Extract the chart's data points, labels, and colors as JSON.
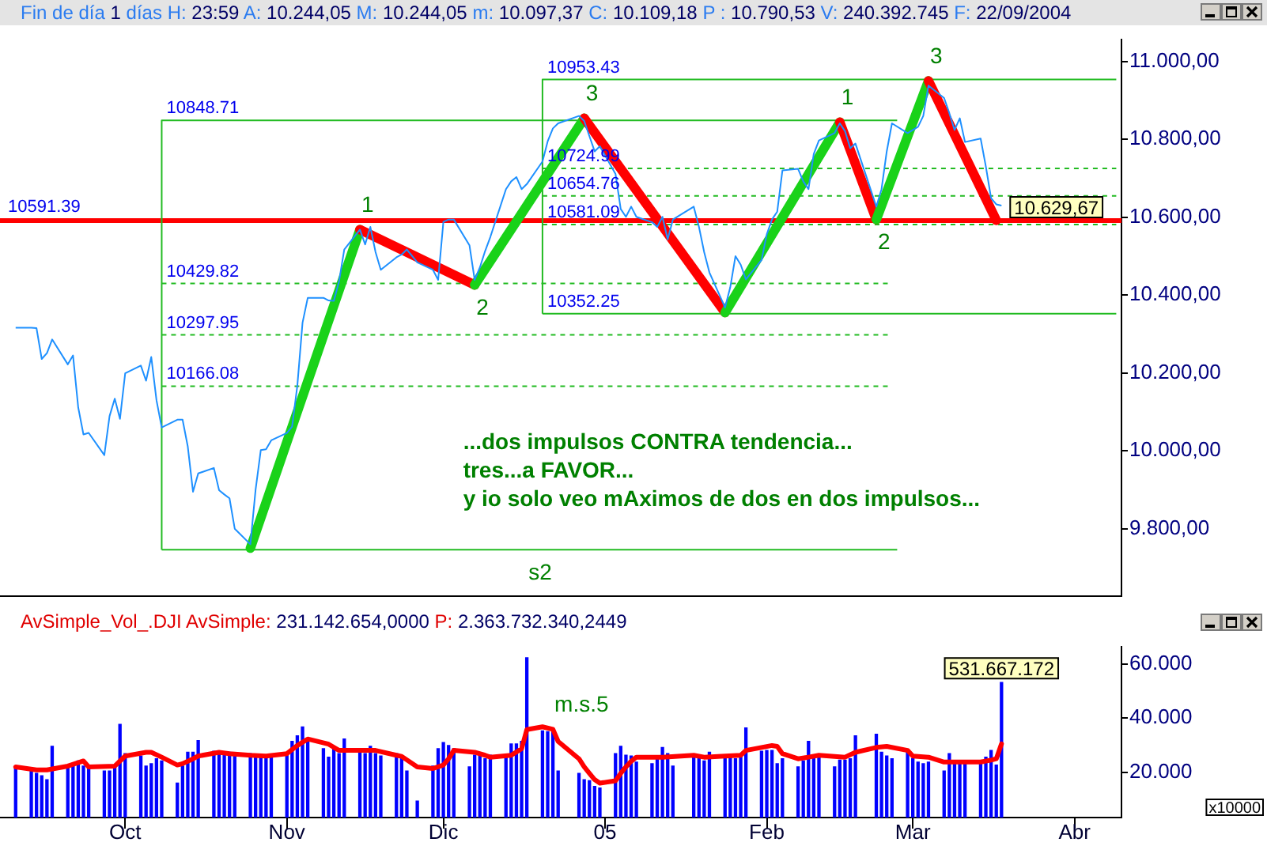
{
  "chart_data": [
    {
      "type": "line",
      "title": "Fin de día 1 días H: 23:59 A: 10.244,05 M: 10.244,05 m: 10.097,37 C: 10.109,18 P : 10.790,53 V: 240.392.745 F: 22/09/2004",
      "x": [
        "2004-09-10",
        "2004-09-13",
        "2004-09-14",
        "2004-09-15",
        "2004-09-16",
        "2004-09-17",
        "2004-09-20",
        "2004-09-21",
        "2004-09-22",
        "2004-09-23",
        "2004-09-24",
        "2004-09-27",
        "2004-09-28",
        "2004-09-29",
        "2004-09-30",
        "2004-10-01",
        "2004-10-04",
        "2004-10-05",
        "2004-10-06",
        "2004-10-07",
        "2004-10-08",
        "2004-10-11",
        "2004-10-12",
        "2004-10-13",
        "2004-10-14",
        "2004-10-15",
        "2004-10-18",
        "2004-10-19",
        "2004-10-20",
        "2004-10-21",
        "2004-10-22",
        "2004-10-25",
        "2004-10-26",
        "2004-10-27",
        "2004-10-28",
        "2004-10-29",
        "2004-11-01",
        "2004-11-02",
        "2004-11-03",
        "2004-11-04",
        "2004-11-05",
        "2004-11-08",
        "2004-11-09",
        "2004-11-10",
        "2004-11-11",
        "2004-11-12",
        "2004-11-15",
        "2004-11-16",
        "2004-11-17",
        "2004-11-18",
        "2004-11-19",
        "2004-11-22",
        "2004-11-23",
        "2004-11-24",
        "2004-11-26",
        "2004-11-29",
        "2004-11-30",
        "2004-12-01",
        "2004-12-02",
        "2004-12-03",
        "2004-12-06",
        "2004-12-07",
        "2004-12-08",
        "2004-12-09",
        "2004-12-10",
        "2004-12-13",
        "2004-12-14",
        "2004-12-15",
        "2004-12-16",
        "2004-12-17",
        "2004-12-20",
        "2004-12-21",
        "2004-12-22",
        "2004-12-23",
        "2004-12-27",
        "2004-12-28",
        "2004-12-29",
        "2004-12-30",
        "2004-12-31",
        "2005-01-03",
        "2005-01-04",
        "2005-01-05",
        "2005-01-06",
        "2005-01-07",
        "2005-01-10",
        "2005-01-11",
        "2005-01-12",
        "2005-01-13",
        "2005-01-14",
        "2005-01-18",
        "2005-01-19",
        "2005-01-20",
        "2005-01-21",
        "2005-01-24",
        "2005-01-25",
        "2005-01-26",
        "2005-01-27",
        "2005-01-28",
        "2005-01-31",
        "2005-02-01",
        "2005-02-02",
        "2005-02-03",
        "2005-02-04",
        "2005-02-07",
        "2005-02-08",
        "2005-02-09",
        "2005-02-10",
        "2005-02-11",
        "2005-02-14",
        "2005-02-15",
        "2005-02-16",
        "2005-02-17",
        "2005-02-18",
        "2005-02-22",
        "2005-02-23",
        "2005-02-24",
        "2005-02-25",
        "2005-02-28",
        "2005-03-01",
        "2005-03-02",
        "2005-03-03",
        "2005-03-04",
        "2005-03-07",
        "2005-03-08",
        "2005-03-09",
        "2005-03-10",
        "2005-03-11",
        "2005-03-14",
        "2005-03-15",
        "2005-03-16",
        "2005-03-17",
        "2005-03-18"
      ],
      "xlim": [
        "2004-09-07",
        "2005-04-10"
      ],
      "ylim": [
        9626,
        11057
      ],
      "yticks": [
        {
          "value": 9800,
          "label": "9.800,00"
        },
        {
          "value": 10000,
          "label": "10.000,00"
        },
        {
          "value": 10200,
          "label": "10.200,00"
        },
        {
          "value": 10400,
          "label": "10.400,00"
        },
        {
          "value": 10600,
          "label": "10.600,00"
        },
        {
          "value": 10800,
          "label": "10.800,00"
        },
        {
          "value": 11000,
          "label": "11.000,00"
        }
      ],
      "tick_labels": "y",
      "series": [
        {
          "name": "10848.71",
          "color": "#22bb22",
          "x": [
            "2004-10-08",
            "2004-10-08",
            "2005-02-26"
          ],
          "values": [
            9746,
            10848.71,
            10848.71
          ]
        },
        {
          "color": "#22bb22",
          "x": [
            "2004-10-08",
            "2004-12-17",
            "2005-02-26"
          ],
          "values": [
            9746,
            9746,
            9746
          ]
        },
        {
          "name": "10429.82",
          "color": "#22bb22",
          "line_style": "dashed",
          "x": [
            "2004-10-08",
            "2005-02-25"
          ],
          "values": [
            10429.82,
            10429.82
          ]
        },
        {
          "name": "10297.95",
          "color": "#22bb22",
          "line_style": "dashed",
          "x": [
            "2004-10-08",
            "2005-02-25"
          ],
          "values": [
            10297.95,
            10297.95
          ]
        },
        {
          "name": "10166.08",
          "color": "#22bb22",
          "line_style": "dashed",
          "x": [
            "2004-10-08",
            "2005-02-25"
          ],
          "values": [
            10166.08,
            10166.08
          ]
        },
        {
          "name": "10953.43",
          "color": "#22bb22",
          "x": [
            "2004-12-20",
            "2004-12-20",
            "2005-04-09"
          ],
          "values": [
            10352.25,
            10953.43,
            10953.43
          ]
        },
        {
          "name": "10352.25",
          "color": "#22bb22",
          "x": [
            "2004-12-20",
            "2005-04-09"
          ],
          "values": [
            10352.25,
            10352.25
          ]
        },
        {
          "name": "10724.99",
          "color": "#22bb22",
          "line_style": "dashed",
          "x": [
            "2004-12-20",
            "2005-04-09"
          ],
          "values": [
            10724.99,
            10724.99
          ]
        },
        {
          "name": "10654.76",
          "color": "#22bb22",
          "line_style": "dashed",
          "x": [
            "2004-12-20",
            "2005-04-09"
          ],
          "values": [
            10654.76,
            10654.76
          ]
        },
        {
          "name": "10581.09",
          "color": "#22bb22",
          "line_style": "dashed",
          "x": [
            "2004-12-20",
            "2005-04-09"
          ],
          "values": [
            10581.09,
            10581.09
          ]
        },
        {
          "color": "#19d219",
          "x": [
            "2004-10-25",
            "2004-11-15"
          ],
          "values": [
            9750,
            10568
          ]
        },
        {
          "color": "#ff0000",
          "x": [
            "2004-11-15",
            "2004-12-07"
          ],
          "values": [
            10568,
            10426
          ]
        },
        {
          "color": "#19d219",
          "x": [
            "2004-12-07",
            "2004-12-28"
          ],
          "values": [
            10426,
            10854
          ]
        },
        {
          "color": "#ff0000",
          "x": [
            "2004-12-28",
            "2005-01-24"
          ],
          "values": [
            10854,
            10355
          ]
        },
        {
          "color": "#19d219",
          "x": [
            "2005-01-24",
            "2005-02-15"
          ],
          "values": [
            10355,
            10844
          ]
        },
        {
          "color": "#ff0000",
          "x": [
            "2005-02-15",
            "2005-02-22"
          ],
          "values": [
            10844,
            10594
          ]
        },
        {
          "color": "#19d219",
          "x": [
            "2005-02-22",
            "2005-03-04"
          ],
          "values": [
            10594,
            10950
          ]
        },
        {
          "color": "#ff0000",
          "x": [
            "2005-03-04",
            "2005-03-17"
          ],
          "values": [
            10950,
            10592
          ]
        },
        {
          "color": "#1e90ff",
          "values": [
            10316,
            10316,
            10315,
            10236,
            10251,
            10286,
            10222,
            10245,
            10111,
            10042,
            10046,
            9989,
            10089,
            10134,
            10082,
            10199,
            10219,
            10180,
            10241,
            10130,
            10060,
            10080,
            10080,
            10011,
            9895,
            9942,
            9956,
            9899,
            9888,
            9878,
            9800,
            9760,
            9900,
            10002,
            10004,
            10027,
            10046,
            10062,
            10167,
            10329,
            10393,
            10393,
            10386,
            10385,
            10435,
            10517,
            10568,
            10530,
            10575,
            10510,
            10465,
            10497,
            10504,
            10517,
            10484,
            10465,
            10439,
            10588,
            10594,
            10594,
            10528,
            10439,
            10471,
            10513,
            10549,
            10672,
            10692,
            10703,
            10672,
            10685,
            10743,
            10795,
            10828,
            10841,
            10860,
            10847,
            10808,
            10769,
            10782,
            10711,
            10621,
            10601,
            10627,
            10601,
            10587,
            10575,
            10601,
            10543,
            10594,
            10627,
            10575,
            10510,
            10458,
            10368,
            10420,
            10500,
            10478,
            10440,
            10490,
            10556,
            10594,
            10614,
            10720,
            10724,
            10692,
            10672,
            10762,
            10797,
            10816,
            10841,
            10821,
            10777,
            10789,
            10627,
            10672,
            10769,
            10841,
            10816,
            10824,
            10832,
            10860,
            10938,
            10906,
            10867,
            10824,
            10854,
            10793,
            10802,
            10730,
            10649,
            10633,
            10629.67
          ],
          "value_labels": [
            null,
            null,
            null,
            null,
            null,
            null,
            null,
            null,
            null,
            null,
            null,
            null,
            null,
            null,
            null,
            null,
            null,
            null,
            null,
            null,
            null,
            null,
            null,
            null,
            null,
            null,
            null,
            null,
            null,
            null,
            null,
            null,
            null,
            null,
            null,
            null,
            null,
            null,
            null,
            null,
            null,
            null,
            null,
            null,
            null,
            null,
            null,
            null,
            null,
            null,
            null,
            null,
            null,
            null,
            null,
            null,
            null,
            null,
            null,
            null,
            null,
            null,
            null,
            null,
            null,
            null,
            null,
            null,
            null,
            null,
            null,
            null,
            null,
            null,
            null,
            null,
            null,
            null,
            null,
            null,
            null,
            null,
            null,
            null,
            null,
            null,
            null,
            null,
            null,
            null,
            null,
            null,
            null,
            null,
            null,
            null,
            null,
            null,
            null,
            null,
            null,
            null,
            null,
            null,
            null,
            null,
            null,
            null,
            null,
            null,
            null,
            null,
            null,
            null,
            null,
            null,
            null,
            null,
            null,
            null,
            null,
            null,
            null,
            null,
            null,
            null,
            null,
            null,
            null,
            null,
            null,
            "10.629,67"
          ]
        }
      ],
      "ref_lines": [
        {
          "axis": "y",
          "value": 10591.39,
          "label": "10591.39",
          "color": "#ff0000"
        }
      ],
      "annotations": [
        {
          "text": "1",
          "x": "2004-11-15",
          "y": 10568
        },
        {
          "text": "2",
          "x": "2004-12-07",
          "y": 10426
        },
        {
          "text": "3",
          "x": "2004-12-28",
          "y": 10854
        },
        {
          "text": "1",
          "x": "2005-02-15",
          "y": 10844
        },
        {
          "text": "2",
          "x": "2005-02-22",
          "y": 10594
        },
        {
          "text": "3",
          "x": "2005-03-04",
          "y": 10950
        },
        {
          "text": "s2",
          "x": "2004-12-17",
          "y": 9746
        },
        "...dos impulsos CONTRA tendencia...",
        "tres...a FAVOR...",
        "y io solo veo mAximos de dos en dos impulsos..."
      ]
    },
    {
      "type": "bar",
      "title": "AvSimple_Vol_.DJI AvSimple: 231.142.654,0000 P: 2.363.732.340,2449",
      "x": [
        "2004-09-10",
        "2004-09-13",
        "2004-09-14",
        "2004-09-15",
        "2004-09-16",
        "2004-09-17",
        "2004-09-20",
        "2004-09-21",
        "2004-09-22",
        "2004-09-23",
        "2004-09-24",
        "2004-09-27",
        "2004-09-28",
        "2004-09-29",
        "2004-09-30",
        "2004-10-01",
        "2004-10-04",
        "2004-10-05",
        "2004-10-06",
        "2004-10-07",
        "2004-10-08",
        "2004-10-11",
        "2004-10-12",
        "2004-10-13",
        "2004-10-14",
        "2004-10-15",
        "2004-10-18",
        "2004-10-19",
        "2004-10-20",
        "2004-10-21",
        "2004-10-22",
        "2004-10-25",
        "2004-10-26",
        "2004-10-27",
        "2004-10-28",
        "2004-10-29",
        "2004-11-01",
        "2004-11-02",
        "2004-11-03",
        "2004-11-04",
        "2004-11-05",
        "2004-11-08",
        "2004-11-09",
        "2004-11-10",
        "2004-11-11",
        "2004-11-12",
        "2004-11-15",
        "2004-11-16",
        "2004-11-17",
        "2004-11-18",
        "2004-11-19",
        "2004-11-22",
        "2004-11-23",
        "2004-11-24",
        "2004-11-26",
        "2004-11-29",
        "2004-11-30",
        "2004-12-01",
        "2004-12-02",
        "2004-12-03",
        "2004-12-06",
        "2004-12-07",
        "2004-12-08",
        "2004-12-09",
        "2004-12-10",
        "2004-12-13",
        "2004-12-14",
        "2004-12-15",
        "2004-12-16",
        "2004-12-17",
        "2004-12-20",
        "2004-12-21",
        "2004-12-22",
        "2004-12-23",
        "2004-12-27",
        "2004-12-28",
        "2004-12-29",
        "2004-12-30",
        "2004-12-31",
        "2005-01-03",
        "2005-01-04",
        "2005-01-05",
        "2005-01-06",
        "2005-01-07",
        "2005-01-10",
        "2005-01-11",
        "2005-01-12",
        "2005-01-13",
        "2005-01-14",
        "2005-01-18",
        "2005-01-19",
        "2005-01-20",
        "2005-01-21",
        "2005-01-24",
        "2005-01-25",
        "2005-01-26",
        "2005-01-27",
        "2005-01-28",
        "2005-01-31",
        "2005-02-01",
        "2005-02-02",
        "2005-02-03",
        "2005-02-04",
        "2005-02-07",
        "2005-02-08",
        "2005-02-09",
        "2005-02-10",
        "2005-02-11",
        "2005-02-14",
        "2005-02-15",
        "2005-02-16",
        "2005-02-17",
        "2005-02-18",
        "2005-02-22",
        "2005-02-23",
        "2005-02-24",
        "2005-02-25",
        "2005-02-28",
        "2005-03-01",
        "2005-03-02",
        "2005-03-03",
        "2005-03-04",
        "2005-03-07",
        "2005-03-08",
        "2005-03-09",
        "2005-03-10",
        "2005-03-11",
        "2005-03-14",
        "2005-03-15",
        "2005-03-16",
        "2005-03-17",
        "2005-03-18"
      ],
      "xlim": [
        "2004-09-07",
        "2005-04-10"
      ],
      "xticks": [
        {
          "value": "2004-10-01",
          "label": "Oct"
        },
        {
          "value": "2004-11-01",
          "label": "Nov"
        },
        {
          "value": "2004-12-01",
          "label": "Dic"
        },
        {
          "value": "2005-01-01",
          "label": "05"
        },
        {
          "value": "2005-02-01",
          "label": "Feb"
        },
        {
          "value": "2005-03-01",
          "label": "Mar"
        },
        {
          "value": "2005-04-01",
          "label": "Abr"
        }
      ],
      "ylim": [
        3300,
        66500
      ],
      "yticks": [
        {
          "value": 20000,
          "label": "20.000"
        },
        {
          "value": 40000,
          "label": "40.000"
        },
        {
          "value": 60000,
          "label": "60.000"
        }
      ],
      "ylabel": "x10000",
      "series": [
        {
          "color": "#0000ff",
          "values": [
            21400,
            21400,
            19600,
            18700,
            17300,
            29600,
            22300,
            23200,
            24200,
            22300,
            21400,
            20500,
            20500,
            22300,
            37700,
            26900,
            26000,
            22300,
            23200,
            25000,
            24200,
            16000,
            22300,
            27400,
            27400,
            31700,
            27800,
            27400,
            26900,
            27400,
            26900,
            26900,
            26000,
            26000,
            26000,
            26000,
            26900,
            31400,
            33500,
            36800,
            31400,
            28700,
            25600,
            28700,
            26900,
            32300,
            28700,
            26900,
            29600,
            26900,
            26000,
            26900,
            25000,
            20500,
            9400,
            22300,
            28700,
            31000,
            29900,
            28700,
            22000,
            26300,
            26300,
            25000,
            26300,
            26000,
            30500,
            30500,
            31400,
            62300,
            35300,
            35000,
            35000,
            20500,
            19600,
            17300,
            16900,
            14800,
            14200,
            26900,
            29600,
            26300,
            26000,
            23800,
            23200,
            25000,
            29200,
            26900,
            22300,
            25600,
            26300,
            24200,
            27400,
            26000,
            26300,
            25000,
            26000,
            36400,
            27800,
            28100,
            28100,
            23200,
            25000,
            22000,
            24200,
            31400,
            25000,
            26300,
            22000,
            24500,
            24500,
            25000,
            33500,
            34100,
            27400,
            26000,
            25000,
            27800,
            25000,
            23800,
            23200,
            23800,
            20500,
            26900,
            23200,
            24200,
            23200,
            23800,
            25600,
            28100,
            22700,
            53166.7172
          ]
        },
        {
          "type": "line",
          "color": "#ff0000",
          "x": [
            "2004-09-10",
            "2004-09-14",
            "2004-09-16",
            "2004-09-20",
            "2004-09-23",
            "2004-09-24",
            "2004-09-29",
            "2004-10-01",
            "2004-10-05",
            "2004-10-06",
            "2004-10-08",
            "2004-10-11",
            "2004-10-12",
            "2004-10-14",
            "2004-10-15",
            "2004-10-19",
            "2004-10-21",
            "2004-10-25",
            "2004-10-28",
            "2004-11-01",
            "2004-11-03",
            "2004-11-05",
            "2004-11-09",
            "2004-11-11",
            "2004-11-16",
            "2004-11-18",
            "2004-11-22",
            "2004-11-23",
            "2004-11-26",
            "2004-11-29",
            "2004-12-01",
            "2004-12-02",
            "2004-12-03",
            "2004-12-07",
            "2004-12-09",
            "2004-12-10",
            "2004-12-14",
            "2004-12-16",
            "2004-12-17",
            "2004-12-20",
            "2004-12-22",
            "2004-12-23",
            "2004-12-27",
            "2004-12-28",
            "2004-12-29",
            "2004-12-30",
            "2004-12-31",
            "2005-01-03",
            "2005-01-04",
            "2005-01-05",
            "2005-01-06",
            "2005-01-07",
            "2005-01-12",
            "2005-01-18",
            "2005-01-20",
            "2005-01-24",
            "2005-01-27",
            "2005-01-28",
            "2005-02-02",
            "2005-02-03",
            "2005-02-04",
            "2005-02-07",
            "2005-02-09",
            "2005-02-11",
            "2005-02-16",
            "2005-02-18",
            "2005-02-22",
            "2005-02-24",
            "2005-02-28",
            "2005-03-01",
            "2005-03-04",
            "2005-03-07",
            "2005-03-14",
            "2005-03-16",
            "2005-03-17",
            "2005-03-18"
          ],
          "values": [
            22000,
            20900,
            20900,
            22300,
            24200,
            22000,
            22300,
            26000,
            27400,
            27400,
            25600,
            22700,
            23200,
            25000,
            26000,
            27400,
            26900,
            26300,
            26000,
            26900,
            29900,
            32300,
            30400,
            28100,
            28100,
            28100,
            26300,
            25900,
            22000,
            21400,
            22700,
            25000,
            28100,
            27400,
            26300,
            25600,
            26300,
            28700,
            35800,
            36800,
            35900,
            31400,
            25000,
            22000,
            19600,
            17300,
            16000,
            16900,
            19600,
            22000,
            24100,
            25600,
            25600,
            26300,
            25600,
            26000,
            26300,
            28100,
            29900,
            29600,
            26900,
            25000,
            25600,
            26300,
            25600,
            27400,
            29200,
            29600,
            28100,
            26000,
            25600,
            23800,
            23800,
            24500,
            25000,
            30500
          ]
        }
      ],
      "annotations": [
        {
          "text": "m.s.5",
          "x": "2004-12-22",
          "y": 35900
        },
        {
          "text": "531.667.172",
          "x": "2005-03-18",
          "y": 53166.7172
        }
      ]
    }
  ]
}
